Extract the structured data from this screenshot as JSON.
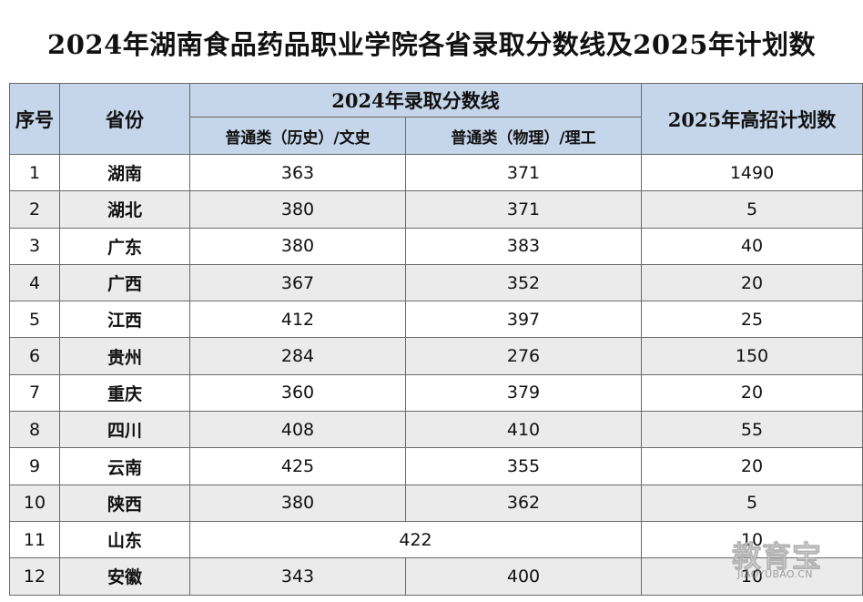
{
  "title": "2024年湖南食品药品职业学院各省录取分数线及2025年计划数",
  "header": {
    "seq": "序号",
    "province": "省份",
    "score_group": "2024年录取分数线",
    "history": "普通类（历史）/文史",
    "physics": "普通类（物理）/理工",
    "plan": "2025年高招计划数"
  },
  "rows": [
    {
      "seq": "1",
      "province": "湖南",
      "history": "363",
      "physics": "371",
      "plan": "1490"
    },
    {
      "seq": "2",
      "province": "湖北",
      "history": "380",
      "physics": "371",
      "plan": "5"
    },
    {
      "seq": "3",
      "province": "广东",
      "history": "380",
      "physics": "383",
      "plan": "40"
    },
    {
      "seq": "4",
      "province": "广西",
      "history": "367",
      "physics": "352",
      "plan": "20"
    },
    {
      "seq": "5",
      "province": "江西",
      "history": "412",
      "physics": "397",
      "plan": "25"
    },
    {
      "seq": "6",
      "province": "贵州",
      "history": "284",
      "physics": "276",
      "plan": "150"
    },
    {
      "seq": "7",
      "province": "重庆",
      "history": "360",
      "physics": "379",
      "plan": "20"
    },
    {
      "seq": "8",
      "province": "四川",
      "history": "408",
      "physics": "410",
      "plan": "55"
    },
    {
      "seq": "9",
      "province": "云南",
      "history": "425",
      "physics": "355",
      "plan": "20"
    },
    {
      "seq": "10",
      "province": "陕西",
      "history": "380",
      "physics": "362",
      "plan": "5"
    }
  ],
  "row_shandong": {
    "seq": "11",
    "province": "山东",
    "score": "422",
    "plan": "10"
  },
  "row_anhui": {
    "seq": "12",
    "province": "安徽",
    "history": "343",
    "physics": "400",
    "plan": "10"
  },
  "watermark": {
    "cn": "教育宝",
    "en": "JIAOYUBAO.CN"
  },
  "colors": {
    "header_bg": "#c5d5ea",
    "alt_row_bg": "#ebebeb",
    "border": "#6a6a6a"
  }
}
